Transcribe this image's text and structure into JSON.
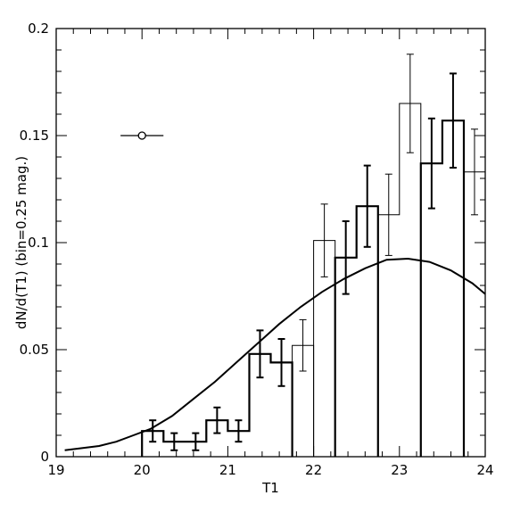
{
  "chart_data": {
    "type": "histogram",
    "xlabel": "T1",
    "ylabel": "dN/d(T1)  (bin=0.25  mag.)",
    "xlim": [
      19,
      24
    ],
    "ylim": [
      0,
      0.2
    ],
    "x_ticks": [
      "19",
      "20",
      "21",
      "22",
      "23",
      "24"
    ],
    "y_ticks": [
      "0",
      "0.05",
      "0.1",
      "0.15",
      "0.2"
    ],
    "grid": false,
    "bin_width": 0.25,
    "series": [
      {
        "style": "thick-steps",
        "bins": [
          {
            "x": 20.125,
            "y": 0.012,
            "err": 0.005
          },
          {
            "x": 20.375,
            "y": 0.007,
            "err": 0.004
          },
          {
            "x": 20.625,
            "y": 0.007,
            "err": 0.004
          },
          {
            "x": 20.875,
            "y": 0.017,
            "err": 0.006
          },
          {
            "x": 21.125,
            "y": 0.012,
            "err": 0.005
          },
          {
            "x": 21.375,
            "y": 0.048,
            "err": 0.011
          },
          {
            "x": 21.625,
            "y": 0.044,
            "err": 0.011
          }
        ]
      },
      {
        "style": "thin-steps",
        "bins": [
          {
            "x": 21.875,
            "y": 0.052,
            "err": 0.012
          }
        ]
      },
      {
        "style": "thin-steps",
        "bins": [
          {
            "x": 22.125,
            "y": 0.101,
            "err": 0.017
          }
        ]
      },
      {
        "style": "thick-steps",
        "bins": [
          {
            "x": 22.375,
            "y": 0.093,
            "err": 0.017
          },
          {
            "x": 22.625,
            "y": 0.117,
            "err": 0.019
          }
        ]
      },
      {
        "style": "thin-steps",
        "bins": [
          {
            "x": 22.875,
            "y": 0.113,
            "err": 0.019
          },
          {
            "x": 23.125,
            "y": 0.165,
            "err": 0.023
          }
        ]
      },
      {
        "style": "thick-steps",
        "bins": [
          {
            "x": 23.375,
            "y": 0.137,
            "err": 0.021
          },
          {
            "x": 23.625,
            "y": 0.157,
            "err": 0.022
          }
        ]
      },
      {
        "style": "thin-steps",
        "bins": [
          {
            "x": 23.875,
            "y": 0.133,
            "err": 0.02
          }
        ]
      },
      {
        "style": "curve",
        "points": [
          [
            19.1,
            0.003
          ],
          [
            19.3,
            0.004
          ],
          [
            19.5,
            0.005
          ],
          [
            19.7,
            0.007
          ],
          [
            19.9,
            0.01
          ],
          [
            20.1,
            0.013
          ],
          [
            20.35,
            0.019
          ],
          [
            20.6,
            0.027
          ],
          [
            20.85,
            0.035
          ],
          [
            21.1,
            0.044
          ],
          [
            21.35,
            0.053
          ],
          [
            21.6,
            0.062
          ],
          [
            21.85,
            0.07
          ],
          [
            22.1,
            0.077
          ],
          [
            22.35,
            0.083
          ],
          [
            22.6,
            0.088
          ],
          [
            22.85,
            0.092
          ],
          [
            23.1,
            0.0925
          ],
          [
            23.35,
            0.091
          ],
          [
            23.6,
            0.087
          ],
          [
            23.85,
            0.081
          ],
          [
            24.0,
            0.076
          ]
        ]
      }
    ],
    "error_bar_marker": {
      "x": 20.0,
      "y": 0.15,
      "xerr": 0.25
    }
  }
}
